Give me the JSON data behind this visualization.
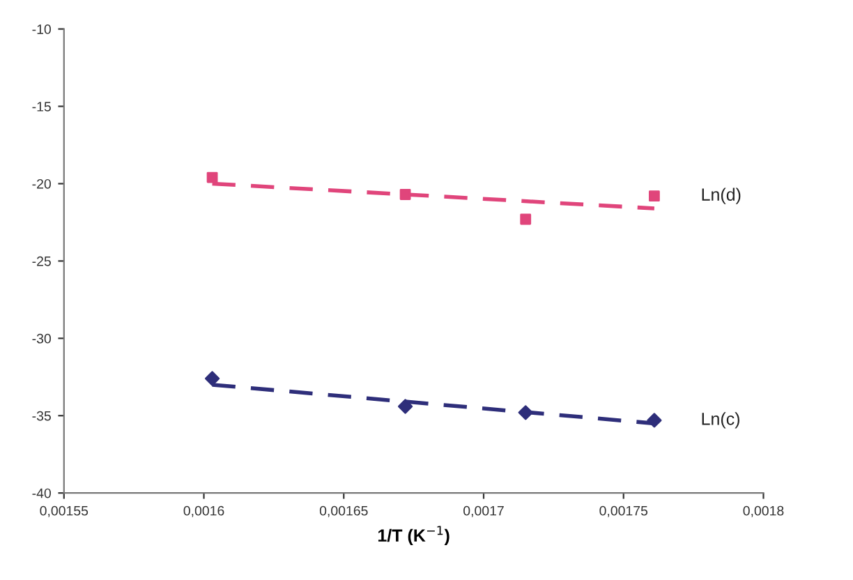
{
  "chart_data": {
    "type": "scatter",
    "xlabel": "1/T (K$^{−1}$)",
    "xlim": [
      0.00155,
      0.0018
    ],
    "xticks": [
      {
        "value": 0.00155,
        "label": "0,00155"
      },
      {
        "value": 0.0016,
        "label": "0,0016"
      },
      {
        "value": 0.00165,
        "label": "0,00165"
      },
      {
        "value": 0.0017,
        "label": "0,0017"
      },
      {
        "value": 0.00175,
        "label": "0,00175"
      },
      {
        "value": 0.0018,
        "label": "0,0018"
      }
    ],
    "ylim": [
      -40,
      -10
    ],
    "yticks": [
      -40,
      -35,
      -30,
      -25,
      -20,
      -15,
      -10
    ],
    "grid": false,
    "legend": false,
    "series": [
      {
        "name": "Ln(d)",
        "marker": "square",
        "color": "#e0457b",
        "x": [
          0.001603,
          0.001672,
          0.001715,
          0.001761
        ],
        "values": [
          -19.6,
          -20.7,
          -22.3,
          -20.8
        ]
      },
      {
        "type": "line",
        "line_style": "dashed",
        "marker": "none",
        "color": "#e0457b",
        "x": [
          0.001603,
          0.001761
        ],
        "values": [
          -20.0,
          -21.6
        ]
      },
      {
        "name": "Ln(c)",
        "marker": "diamond",
        "color": "#2e2e7a",
        "x": [
          0.001603,
          0.001672,
          0.001715,
          0.001761
        ],
        "values": [
          -32.6,
          -34.4,
          -34.8,
          -35.3
        ]
      },
      {
        "type": "line",
        "line_style": "dashed",
        "marker": "none",
        "color": "#2e2e7a",
        "x": [
          0.001603,
          0.001761
        ],
        "values": [
          -33.0,
          -35.5
        ]
      }
    ]
  }
}
